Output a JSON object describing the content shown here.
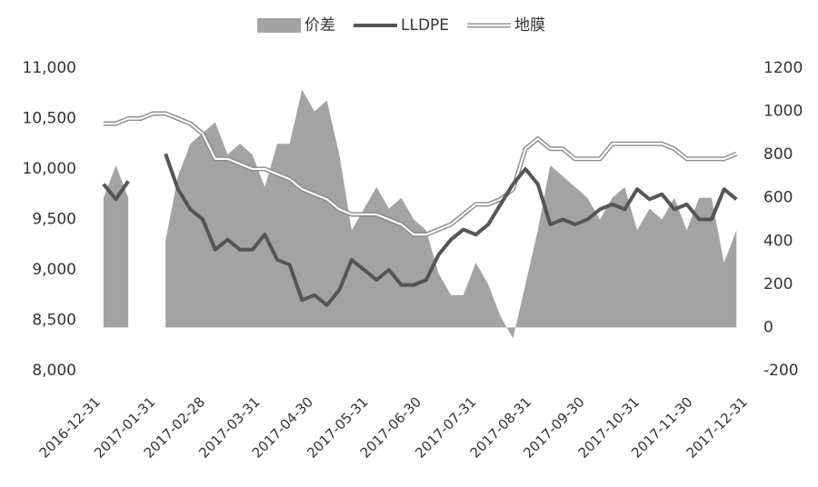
{
  "chart_data": {
    "type": "line",
    "x": [
      "2017-01-03",
      "2017-01-10",
      "2017-01-17",
      "2017-01-24",
      "2017-01-31",
      "2017-02-07",
      "2017-02-14",
      "2017-02-21",
      "2017-02-28",
      "2017-03-07",
      "2017-03-14",
      "2017-03-21",
      "2017-03-28",
      "2017-04-04",
      "2017-04-11",
      "2017-04-18",
      "2017-04-25",
      "2017-05-02",
      "2017-05-09",
      "2017-05-16",
      "2017-05-23",
      "2017-05-30",
      "2017-06-06",
      "2017-06-13",
      "2017-06-20",
      "2017-06-27",
      "2017-07-04",
      "2017-07-11",
      "2017-07-18",
      "2017-07-25",
      "2017-08-01",
      "2017-08-08",
      "2017-08-15",
      "2017-08-22",
      "2017-08-29",
      "2017-09-05",
      "2017-09-12",
      "2017-09-19",
      "2017-09-26",
      "2017-10-03",
      "2017-10-10",
      "2017-10-17",
      "2017-10-24",
      "2017-10-31",
      "2017-11-07",
      "2017-11-14",
      "2017-11-21",
      "2017-11-28",
      "2017-12-05",
      "2017-12-12",
      "2017-12-19",
      "2017-12-26"
    ],
    "series": [
      {
        "name": "价差",
        "type": "area",
        "axis": "y2",
        "color": "#a3a3a3",
        "values": [
          600,
          750,
          600,
          null,
          null,
          400,
          700,
          850,
          900,
          950,
          800,
          850,
          800,
          650,
          850,
          850,
          1100,
          1000,
          1050,
          800,
          450,
          550,
          650,
          550,
          600,
          500,
          450,
          250,
          150,
          150,
          300,
          200,
          50,
          -50,
          200,
          450,
          750,
          700,
          650,
          600,
          500,
          600,
          650,
          450,
          550,
          500,
          600,
          450,
          600,
          600,
          300,
          450
        ]
      },
      {
        "name": "LLDPE",
        "type": "line",
        "color": "#555555",
        "values": [
          9850,
          9700,
          9880,
          null,
          null,
          10150,
          9800,
          9600,
          9500,
          9200,
          9300,
          9200,
          9200,
          9350,
          9100,
          9050,
          8700,
          8750,
          8650,
          8800,
          9100,
          9000,
          8900,
          9000,
          8850,
          8850,
          8900,
          9150,
          9300,
          9400,
          9350,
          9450,
          9650,
          9850,
          10000,
          9850,
          9450,
          9500,
          9450,
          9500,
          9600,
          9650,
          9600,
          9800,
          9700,
          9750,
          9600,
          9650,
          9500,
          9500,
          9800,
          9700
        ]
      },
      {
        "name": "地膜",
        "type": "double-line",
        "color": "#8a8a8a",
        "values": [
          10450,
          10450,
          10500,
          10500,
          10550,
          10550,
          10500,
          10450,
          10350,
          10100,
          10100,
          10050,
          10000,
          10000,
          9950,
          9900,
          9800,
          9750,
          9700,
          9600,
          9550,
          9550,
          9550,
          9500,
          9450,
          9350,
          9350,
          9400,
          9450,
          9550,
          9650,
          9650,
          9700,
          9800,
          10200,
          10300,
          10200,
          10200,
          10100,
          10100,
          10100,
          10250,
          10250,
          10250,
          10250,
          10250,
          10200,
          10100,
          10100,
          10100,
          10100,
          10150
        ]
      }
    ],
    "xlim": [
      "2016-12-31",
      "2017-12-31"
    ],
    "xticks": [
      "2016-12-31",
      "2017-01-31",
      "2017-02-28",
      "2017-03-31",
      "2017-04-30",
      "2017-05-31",
      "2017-06-30",
      "2017-07-31",
      "2017-08-31",
      "2017-09-30",
      "2017-10-31",
      "2017-11-30",
      "2017-12-31"
    ],
    "ylim": [
      8000,
      11000
    ],
    "yticks": [
      {
        "value": 8000,
        "label": "8,000"
      },
      {
        "value": 8500,
        "label": "8,500"
      },
      {
        "value": 9000,
        "label": "9,000"
      },
      {
        "value": 9500,
        "label": "9,500"
      },
      {
        "value": 10000,
        "label": "10,000"
      },
      {
        "value": 10500,
        "label": "10,500"
      },
      {
        "value": 11000,
        "label": "11,000"
      }
    ],
    "y2lim": [
      -200,
      1200
    ],
    "y2ticks": [
      -200,
      0,
      200,
      400,
      600,
      800,
      1000,
      1200
    ],
    "legend": "top"
  }
}
